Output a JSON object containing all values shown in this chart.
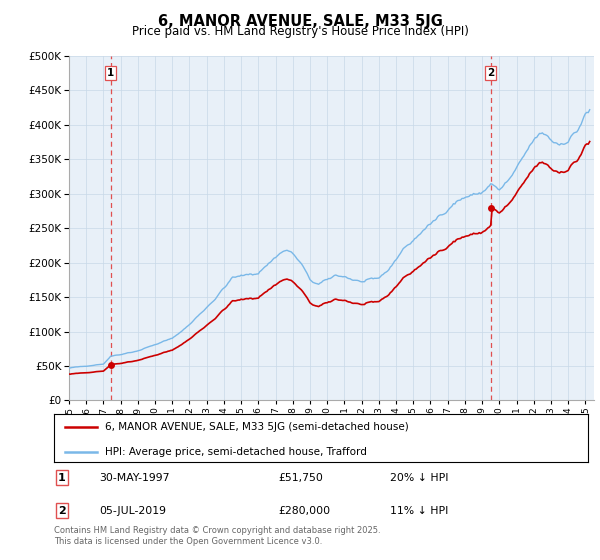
{
  "title": "6, MANOR AVENUE, SALE, M33 5JG",
  "subtitle": "Price paid vs. HM Land Registry's House Price Index (HPI)",
  "legend_line1": "6, MANOR AVENUE, SALE, M33 5JG (semi-detached house)",
  "legend_line2": "HPI: Average price, semi-detached house, Trafford",
  "sale1_date": "30-MAY-1997",
  "sale1_price": 51750,
  "sale1_label": "20% ↓ HPI",
  "sale2_date": "05-JUL-2019",
  "sale2_price": 280000,
  "sale2_label": "11% ↓ HPI",
  "footnote": "Contains HM Land Registry data © Crown copyright and database right 2025.\nThis data is licensed under the Open Government Licence v3.0.",
  "hpi_color": "#7ab8e8",
  "price_color": "#cc0000",
  "vline_color": "#e05050",
  "bg_color": "#e8f0f8",
  "grid_color": "#c8d8e8",
  "ylim": [
    0,
    500000
  ],
  "xlim_start": 1995.3,
  "xlim_end": 2025.5,
  "sale1_year": 1997.414,
  "sale2_year": 2019.506
}
